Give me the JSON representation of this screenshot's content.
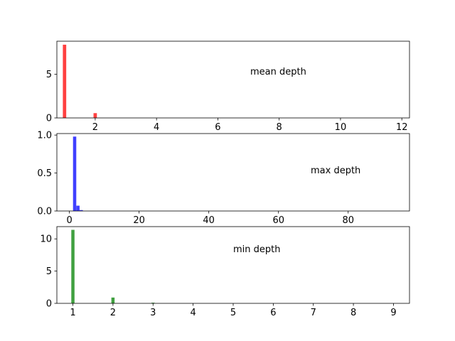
{
  "chart_data": [
    {
      "type": "bar",
      "annotation": "mean depth",
      "color": "#ff0000",
      "xlim": [
        0.75,
        12.25
      ],
      "ylim": [
        0,
        8.8
      ],
      "xticks": [
        2,
        4,
        6,
        8,
        10,
        12
      ],
      "yticks": [
        0,
        5
      ],
      "bin_width": 0.11,
      "bars": [
        {
          "x": 1.0,
          "value": 8.4
        },
        {
          "x": 2.0,
          "value": 0.55
        }
      ]
    },
    {
      "type": "bar",
      "annotation": "max depth",
      "color": "#0000ff",
      "xlim": [
        -3.6,
        97.6
      ],
      "ylim": [
        0,
        1.02
      ],
      "xticks": [
        0,
        20,
        40,
        60,
        80
      ],
      "yticks": [
        0.0,
        0.5,
        1.0
      ],
      "bin_width": 0.93,
      "bars": [
        {
          "x": 1.5,
          "value": 0.98
        },
        {
          "x": 2.45,
          "value": 0.07
        },
        {
          "x": 3.4,
          "value": 0.012
        }
      ]
    },
    {
      "type": "bar",
      "annotation": "min depth",
      "color": "#008000",
      "xlim": [
        0.6,
        9.4
      ],
      "ylim": [
        0,
        11.9
      ],
      "xticks": [
        1,
        2,
        3,
        4,
        5,
        6,
        7,
        8,
        9
      ],
      "yticks": [
        0,
        5,
        10
      ],
      "bin_width": 0.08,
      "bars": [
        {
          "x": 1.0,
          "value": 11.4
        },
        {
          "x": 2.0,
          "value": 0.9
        },
        {
          "x": 3.0,
          "value": 0.1
        }
      ]
    }
  ]
}
